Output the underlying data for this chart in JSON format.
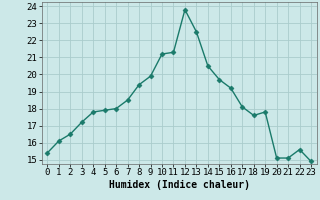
{
  "x": [
    0,
    1,
    2,
    3,
    4,
    5,
    6,
    7,
    8,
    9,
    10,
    11,
    12,
    13,
    14,
    15,
    16,
    17,
    18,
    19,
    20,
    21,
    22,
    23
  ],
  "y": [
    15.4,
    16.1,
    16.5,
    17.2,
    17.8,
    17.9,
    18.0,
    18.5,
    19.4,
    19.9,
    21.2,
    21.3,
    23.8,
    22.5,
    20.5,
    19.7,
    19.2,
    18.1,
    17.6,
    17.8,
    15.1,
    15.1,
    15.6,
    14.9
  ],
  "line_color": "#1a7a6a",
  "marker": "D",
  "marker_size": 2.5,
  "bg_color": "#cce8e8",
  "grid_color": "#aacccc",
  "xlabel": "Humidex (Indice chaleur)",
  "xlim": [
    -0.5,
    23.5
  ],
  "ylim": [
    14.75,
    24.25
  ],
  "yticks": [
    15,
    16,
    17,
    18,
    19,
    20,
    21,
    22,
    23,
    24
  ],
  "xticks": [
    0,
    1,
    2,
    3,
    4,
    5,
    6,
    7,
    8,
    9,
    10,
    11,
    12,
    13,
    14,
    15,
    16,
    17,
    18,
    19,
    20,
    21,
    22,
    23
  ],
  "xlabel_fontsize": 7,
  "tick_fontsize": 6.5,
  "linewidth": 1.0
}
